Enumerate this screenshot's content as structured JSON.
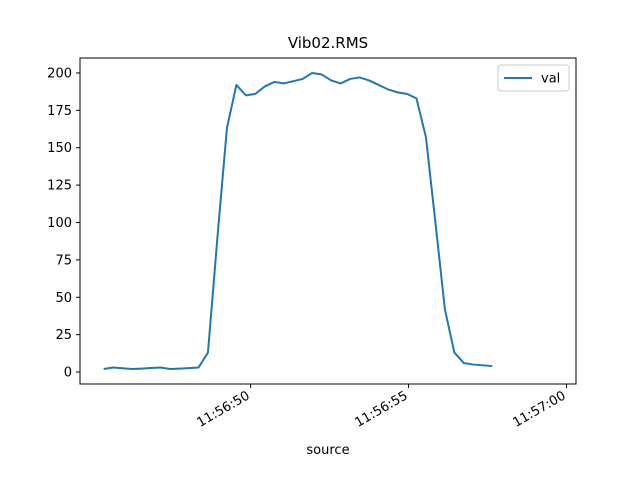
{
  "chart_data": {
    "type": "line",
    "title": "Vib02.RMS",
    "xlabel": "source",
    "ylabel": "",
    "x_unit": "seconds",
    "xlim": [
      44.6,
      60.3
    ],
    "ylim": [
      -8,
      210
    ],
    "y_ticks": [
      0,
      25,
      50,
      75,
      100,
      125,
      150,
      175,
      200
    ],
    "x_ticks": [
      {
        "value": 50,
        "label": "11:56:50"
      },
      {
        "value": 55,
        "label": "11:56:55"
      },
      {
        "value": 60,
        "label": "11:57:00"
      }
    ],
    "grid": false,
    "legend": {
      "position": "top-right"
    },
    "series": [
      {
        "name": "val",
        "color": "#1f77b4",
        "points": [
          [
            45.35,
            2
          ],
          [
            45.65,
            3
          ],
          [
            45.95,
            2.5
          ],
          [
            46.25,
            2
          ],
          [
            46.55,
            2.3
          ],
          [
            46.85,
            2.7
          ],
          [
            47.15,
            3
          ],
          [
            47.45,
            2
          ],
          [
            47.75,
            2.3
          ],
          [
            48.05,
            2.6
          ],
          [
            48.35,
            3
          ],
          [
            48.65,
            13
          ],
          [
            48.95,
            90
          ],
          [
            49.25,
            163
          ],
          [
            49.55,
            192
          ],
          [
            49.85,
            185
          ],
          [
            50.15,
            186
          ],
          [
            50.45,
            191
          ],
          [
            50.75,
            194
          ],
          [
            51.05,
            193
          ],
          [
            51.35,
            194.5
          ],
          [
            51.65,
            196
          ],
          [
            51.95,
            200
          ],
          [
            52.25,
            199
          ],
          [
            52.55,
            195
          ],
          [
            52.85,
            193
          ],
          [
            53.15,
            196
          ],
          [
            53.45,
            197
          ],
          [
            53.75,
            195
          ],
          [
            54.05,
            192
          ],
          [
            54.35,
            189
          ],
          [
            54.65,
            187
          ],
          [
            54.95,
            186
          ],
          [
            55.25,
            183
          ],
          [
            55.55,
            157
          ],
          [
            55.85,
            100
          ],
          [
            56.15,
            42
          ],
          [
            56.45,
            13
          ],
          [
            56.75,
            6
          ],
          [
            57.05,
            5
          ],
          [
            57.35,
            4.5
          ],
          [
            57.65,
            4
          ]
        ]
      }
    ]
  }
}
